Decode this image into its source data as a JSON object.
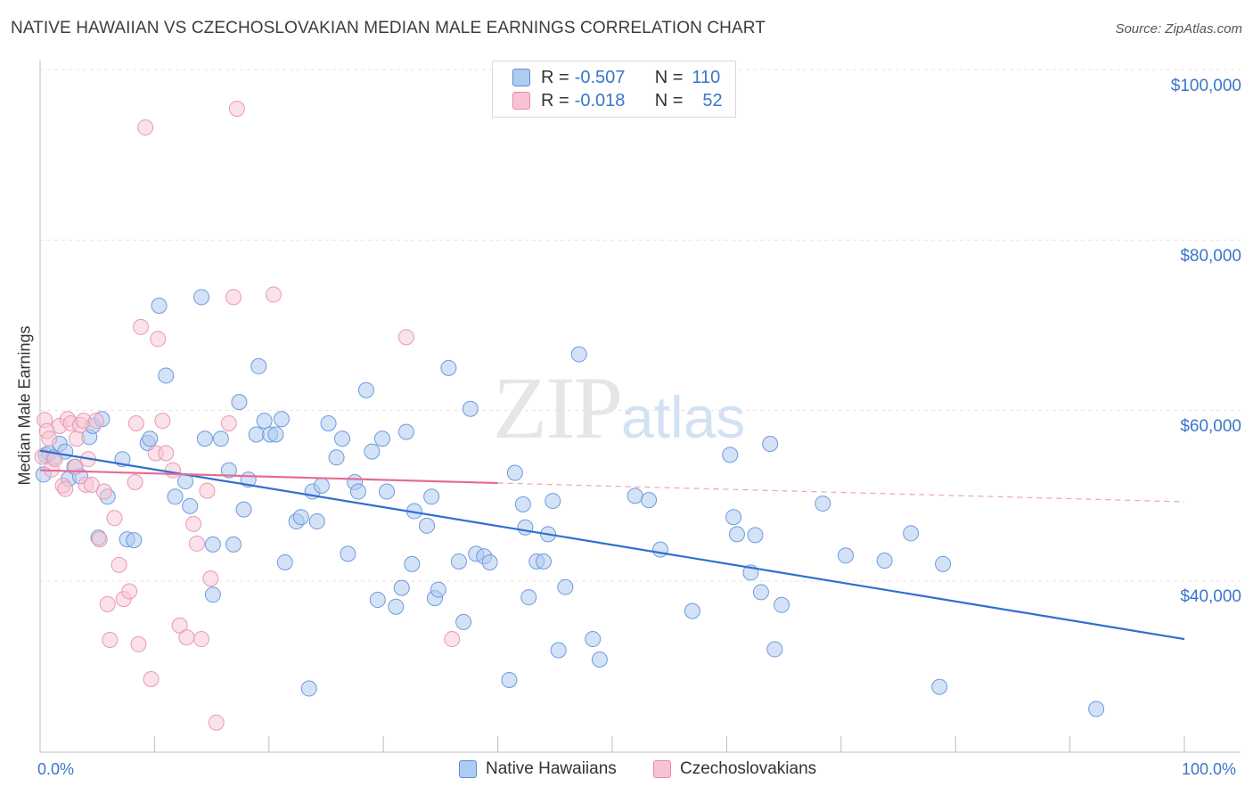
{
  "title": "NATIVE HAWAIIAN VS CZECHOSLOVAKIAN MEDIAN MALE EARNINGS CORRELATION CHART",
  "source": "Source: ZipAtlas.com",
  "watermark": {
    "zip": "ZIP",
    "atlas": "atlas"
  },
  "legend": {
    "r_label": "R =",
    "n_label": "N =",
    "series": [
      {
        "r": "-0.507",
        "n": "110",
        "fill": "#aecbf0",
        "stroke": "#5b8fd6"
      },
      {
        "r": "-0.018",
        "n": "52",
        "fill": "#f7c3d3",
        "stroke": "#e68aa7"
      }
    ]
  },
  "bottom_legend": [
    "Native Hawaiians",
    "Czechoslovakians"
  ],
  "colors": {
    "blue_line": "#2f6fd0",
    "pink_line": "#e66b94",
    "axis_text": "#3a76c9",
    "grid": "#e3e3e3"
  },
  "chart_data": {
    "type": "scatter",
    "title": "NATIVE HAWAIIAN VS CZECHOSLOVAKIAN MEDIAN MALE EARNINGS CORRELATION CHART",
    "xlabel": "",
    "ylabel": "Median Male Earnings",
    "x_tick_labels": [
      "0.0%",
      "100.0%"
    ],
    "y_tick_labels": [
      "$40,000",
      "$60,000",
      "$80,000",
      "$100,000"
    ],
    "y_ticks": [
      40000,
      60000,
      80000,
      100000
    ],
    "xlim": [
      0,
      100
    ],
    "ylim": [
      22000,
      103000
    ],
    "grid": true,
    "legend_position": "top-center",
    "series": [
      {
        "name": "Native Hawaiians",
        "color": "#5b8fd6",
        "points": [
          [
            0.3,
            52.5
          ],
          [
            0.5,
            54.8
          ],
          [
            0.8,
            55.0
          ],
          [
            1.2,
            54.5
          ],
          [
            1.7,
            56.1
          ],
          [
            2.2,
            55.2
          ],
          [
            2.5,
            52.0
          ],
          [
            3.0,
            53.4
          ],
          [
            3.5,
            52.3
          ],
          [
            4.3,
            56.9
          ],
          [
            4.6,
            58.2
          ],
          [
            5.1,
            45.1
          ],
          [
            5.4,
            59.0
          ],
          [
            5.9,
            49.9
          ],
          [
            7.6,
            44.9
          ],
          [
            7.2,
            54.3
          ],
          [
            8.2,
            44.8
          ],
          [
            9.4,
            56.2
          ],
          [
            9.6,
            56.7
          ],
          [
            10.4,
            72.3
          ],
          [
            11.0,
            64.1
          ],
          [
            11.8,
            49.9
          ],
          [
            12.7,
            51.7
          ],
          [
            13.1,
            48.8
          ],
          [
            14.1,
            73.3
          ],
          [
            14.4,
            56.7
          ],
          [
            15.1,
            38.4
          ],
          [
            15.1,
            44.3
          ],
          [
            15.8,
            56.7
          ],
          [
            16.5,
            53.0
          ],
          [
            16.9,
            44.3
          ],
          [
            17.4,
            61.0
          ],
          [
            17.8,
            48.4
          ],
          [
            18.2,
            51.9
          ],
          [
            18.9,
            57.2
          ],
          [
            19.1,
            65.2
          ],
          [
            19.6,
            58.8
          ],
          [
            20.1,
            57.2
          ],
          [
            20.6,
            57.2
          ],
          [
            21.1,
            59.0
          ],
          [
            21.4,
            42.2
          ],
          [
            22.4,
            47.0
          ],
          [
            22.8,
            47.5
          ],
          [
            23.5,
            27.4
          ],
          [
            23.8,
            50.5
          ],
          [
            24.2,
            47.0
          ],
          [
            24.6,
            51.2
          ],
          [
            25.2,
            58.5
          ],
          [
            25.9,
            54.5
          ],
          [
            26.4,
            56.7
          ],
          [
            26.9,
            43.2
          ],
          [
            27.5,
            51.6
          ],
          [
            27.8,
            50.5
          ],
          [
            28.5,
            62.4
          ],
          [
            29.0,
            55.2
          ],
          [
            29.5,
            37.8
          ],
          [
            29.9,
            56.7
          ],
          [
            30.3,
            50.5
          ],
          [
            31.1,
            37.0
          ],
          [
            31.6,
            39.2
          ],
          [
            32.0,
            57.5
          ],
          [
            32.5,
            42.0
          ],
          [
            32.7,
            48.2
          ],
          [
            33.8,
            46.5
          ],
          [
            34.2,
            49.9
          ],
          [
            34.5,
            38.0
          ],
          [
            34.8,
            39.0
          ],
          [
            35.7,
            65.0
          ],
          [
            36.6,
            42.3
          ],
          [
            37.0,
            35.2
          ],
          [
            37.6,
            60.2
          ],
          [
            38.1,
            43.2
          ],
          [
            38.8,
            42.9
          ],
          [
            39.3,
            42.2
          ],
          [
            41.0,
            28.4
          ],
          [
            41.5,
            52.7
          ],
          [
            42.2,
            49.0
          ],
          [
            42.4,
            46.3
          ],
          [
            42.7,
            38.1
          ],
          [
            43.4,
            42.3
          ],
          [
            44.0,
            42.3
          ],
          [
            44.4,
            45.5
          ],
          [
            44.8,
            49.4
          ],
          [
            45.3,
            31.9
          ],
          [
            45.9,
            39.3
          ],
          [
            47.1,
            66.6
          ],
          [
            48.3,
            33.2
          ],
          [
            48.9,
            30.8
          ],
          [
            52.0,
            50.0
          ],
          [
            53.2,
            49.5
          ],
          [
            54.2,
            43.7
          ],
          [
            57.0,
            36.5
          ],
          [
            60.3,
            54.8
          ],
          [
            60.6,
            47.5
          ],
          [
            60.9,
            45.5
          ],
          [
            62.1,
            41.0
          ],
          [
            62.5,
            45.4
          ],
          [
            63.0,
            38.7
          ],
          [
            63.8,
            56.1
          ],
          [
            64.2,
            32.0
          ],
          [
            64.8,
            37.2
          ],
          [
            68.4,
            49.1
          ],
          [
            70.4,
            43.0
          ],
          [
            73.8,
            42.4
          ],
          [
            76.1,
            45.6
          ],
          [
            78.6,
            27.6
          ],
          [
            78.9,
            42.0
          ],
          [
            92.3,
            25.0
          ]
        ]
      },
      {
        "name": "Czechoslovakians",
        "color": "#e68aa7",
        "points": [
          [
            0.2,
            54.6
          ],
          [
            0.4,
            58.9
          ],
          [
            0.6,
            57.6
          ],
          [
            0.8,
            56.7
          ],
          [
            1.0,
            53.1
          ],
          [
            1.3,
            54.3
          ],
          [
            1.7,
            58.2
          ],
          [
            2.0,
            51.2
          ],
          [
            2.2,
            50.8
          ],
          [
            2.4,
            59.0
          ],
          [
            2.7,
            58.5
          ],
          [
            3.1,
            53.4
          ],
          [
            3.2,
            56.7
          ],
          [
            3.5,
            58.3
          ],
          [
            3.8,
            58.8
          ],
          [
            4.0,
            51.3
          ],
          [
            4.2,
            54.3
          ],
          [
            4.5,
            51.3
          ],
          [
            4.9,
            58.8
          ],
          [
            5.2,
            44.9
          ],
          [
            5.6,
            50.5
          ],
          [
            5.9,
            37.3
          ],
          [
            6.1,
            33.1
          ],
          [
            6.5,
            47.4
          ],
          [
            6.9,
            41.9
          ],
          [
            7.3,
            37.9
          ],
          [
            7.8,
            38.8
          ],
          [
            8.3,
            51.6
          ],
          [
            8.4,
            58.5
          ],
          [
            8.6,
            32.6
          ],
          [
            8.8,
            69.8
          ],
          [
            9.2,
            93.2
          ],
          [
            9.7,
            28.5
          ],
          [
            10.1,
            55.0
          ],
          [
            10.3,
            68.4
          ],
          [
            10.7,
            58.8
          ],
          [
            11.0,
            55.0
          ],
          [
            11.6,
            53.0
          ],
          [
            12.2,
            34.8
          ],
          [
            12.8,
            33.4
          ],
          [
            13.4,
            46.7
          ],
          [
            13.7,
            44.4
          ],
          [
            14.1,
            33.2
          ],
          [
            14.6,
            50.6
          ],
          [
            14.9,
            40.3
          ],
          [
            15.4,
            23.4
          ],
          [
            16.5,
            58.5
          ],
          [
            16.9,
            73.3
          ],
          [
            17.2,
            95.4
          ],
          [
            20.4,
            73.6
          ],
          [
            32.0,
            68.6
          ],
          [
            36.0,
            33.2
          ]
        ]
      }
    ],
    "trend_lines": [
      {
        "series": "Native Hawaiians",
        "x": [
          0,
          100
        ],
        "y": [
          55.3,
          33.2
        ]
      },
      {
        "series": "Czechoslovakians",
        "x": [
          0,
          40
        ],
        "y": [
          53.0,
          51.5
        ],
        "dashed_extension_to": [
          100,
          49.3
        ]
      }
    ],
    "units_note_y": "thousands of dollars"
  }
}
